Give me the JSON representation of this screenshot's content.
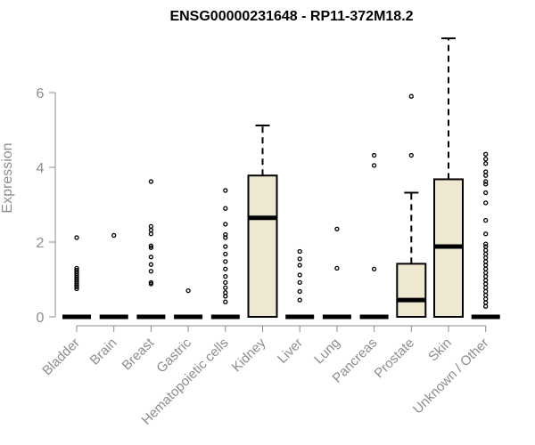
{
  "chart_data": {
    "type": "boxplot",
    "title": "ENSG00000231648 - RP11-372M18.2",
    "ylabel": "Expression",
    "xlabel": "",
    "ylim": [
      0,
      7.5
    ],
    "yticks": [
      0,
      2,
      4,
      6
    ],
    "box_fill": "#efe8d0",
    "grid": false,
    "categories": [
      "Bladder",
      "Brain",
      "Breast",
      "Gastric",
      "Hematopoietic cells",
      "Kidney",
      "Liver",
      "Lung",
      "Pancreas",
      "Prostate",
      "Skin",
      "Unknown / Other"
    ],
    "boxes": [
      {
        "name": "Bladder",
        "q1": 0,
        "median": 0,
        "q3": 0,
        "whisker_low": 0,
        "whisker_high": 0,
        "outliers": [
          2.12,
          1.3,
          1.25,
          1.2,
          1.15,
          1.1,
          1.05,
          1.0,
          0.95,
          0.9,
          0.85,
          0.8,
          0.75
        ]
      },
      {
        "name": "Brain",
        "q1": 0,
        "median": 0,
        "q3": 0,
        "whisker_low": 0,
        "whisker_high": 0,
        "outliers": [
          2.18
        ]
      },
      {
        "name": "Breast",
        "q1": 0,
        "median": 0,
        "q3": 0,
        "whisker_low": 0,
        "whisker_high": 0,
        "outliers": [
          3.62,
          2.42,
          2.32,
          2.22,
          1.9,
          1.85,
          1.6,
          1.4,
          1.22,
          0.92,
          0.88
        ]
      },
      {
        "name": "Gastric",
        "q1": 0,
        "median": 0,
        "q3": 0,
        "whisker_low": 0,
        "whisker_high": 0,
        "outliers": [
          0.7
        ]
      },
      {
        "name": "Hematopoietic cells",
        "q1": 0,
        "median": 0,
        "q3": 0,
        "whisker_low": 0,
        "whisker_high": 0,
        "outliers": [
          3.38,
          2.9,
          2.48,
          2.2,
          2.12,
          1.88,
          1.68,
          1.48,
          1.28,
          1.08,
          0.92,
          0.78,
          0.65,
          0.55,
          0.4
        ]
      },
      {
        "name": "Kidney",
        "q1": 0,
        "median": 2.65,
        "q3": 3.78,
        "whisker_low": 0,
        "whisker_high": 5.12,
        "outliers": []
      },
      {
        "name": "Liver",
        "q1": 0,
        "median": 0,
        "q3": 0,
        "whisker_low": 0,
        "whisker_high": 0,
        "outliers": [
          1.75,
          1.55,
          1.38,
          1.12,
          0.92,
          0.68,
          0.45
        ]
      },
      {
        "name": "Lung",
        "q1": 0,
        "median": 0,
        "q3": 0,
        "whisker_low": 0,
        "whisker_high": 0,
        "outliers": [
          2.35,
          1.3
        ]
      },
      {
        "name": "Pancreas",
        "q1": 0,
        "median": 0,
        "q3": 0,
        "whisker_low": 0,
        "whisker_high": 0,
        "outliers": [
          4.32,
          4.05,
          1.28
        ]
      },
      {
        "name": "Prostate",
        "q1": 0,
        "median": 0.45,
        "q3": 1.42,
        "whisker_low": 0,
        "whisker_high": 3.32,
        "outliers": [
          5.9,
          4.32
        ]
      },
      {
        "name": "Skin",
        "q1": 0,
        "median": 1.88,
        "q3": 3.68,
        "whisker_low": 0,
        "whisker_high": 7.45,
        "outliers": []
      },
      {
        "name": "Unknown / Other",
        "q1": 0,
        "median": 0,
        "q3": 0,
        "whisker_low": 0,
        "whisker_high": 0,
        "outliers": [
          4.35,
          4.22,
          4.1,
          3.88,
          3.78,
          3.62,
          3.55,
          3.32,
          3.05,
          2.58,
          2.22,
          1.95,
          1.88,
          1.78,
          1.68,
          1.58,
          1.48,
          1.38,
          1.28,
          1.18,
          1.08,
          0.98,
          0.88,
          0.78,
          0.68,
          0.58,
          0.48,
          0.38,
          0.28
        ]
      }
    ]
  }
}
